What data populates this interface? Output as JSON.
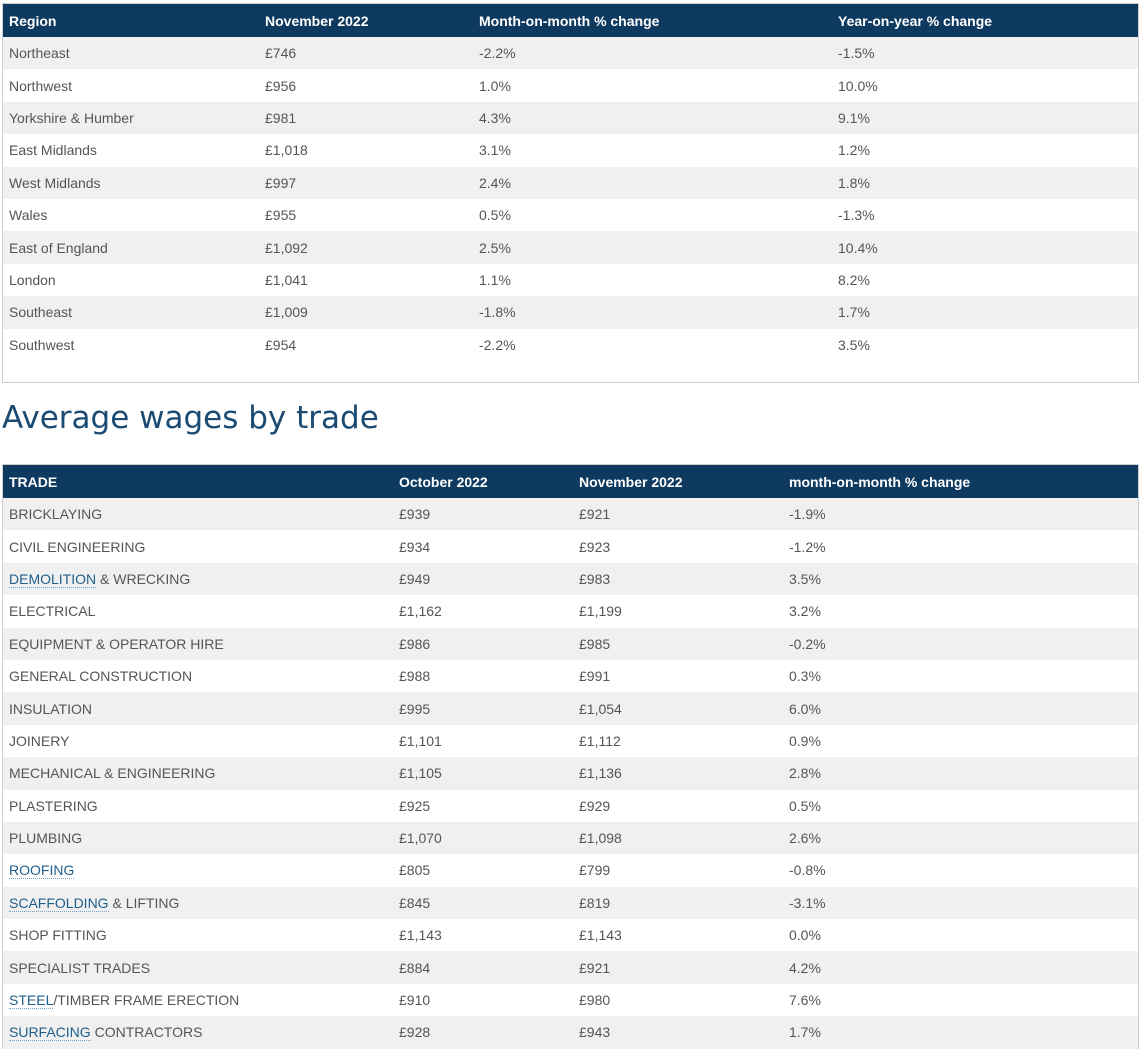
{
  "region_table": {
    "headers": [
      "Region",
      "November 2022",
      "Month-on-month % change",
      "Year-on-year % change"
    ],
    "rows": [
      [
        "Northeast",
        "£746",
        "-2.2%",
        "-1.5%"
      ],
      [
        "Northwest",
        "£956",
        "1.0%",
        "10.0%"
      ],
      [
        "Yorkshire & Humber",
        "£981",
        "4.3%",
        "9.1%"
      ],
      [
        "East Midlands",
        "£1,018",
        "3.1%",
        "1.2%"
      ],
      [
        "West Midlands",
        "£997",
        "2.4%",
        "1.8%"
      ],
      [
        "Wales",
        "£955",
        "0.5%",
        "-1.3%"
      ],
      [
        "East of England",
        "£1,092",
        "2.5%",
        "10.4%"
      ],
      [
        "London",
        "£1,041",
        "1.1%",
        "8.2%"
      ],
      [
        "Southeast",
        "£1,009",
        "-1.8%",
        "1.7%"
      ],
      [
        "Southwest",
        "£954",
        "-2.2%",
        "3.5%"
      ]
    ]
  },
  "trade_section": {
    "heading": "Average wages by trade"
  },
  "trade_table": {
    "headers": [
      "TRADE",
      "October 2022",
      "November 2022",
      "month-on-month % change"
    ],
    "rows": [
      {
        "trade_link": "",
        "trade_rest": "Bricklaying",
        "oct": "£939",
        "nov": "£921",
        "change": "-1.9%"
      },
      {
        "trade_link": "",
        "trade_rest": "Civil Engineering",
        "oct": "£934",
        "nov": "£923",
        "change": "-1.2%"
      },
      {
        "trade_link": "Demolition",
        "trade_rest": " & Wrecking",
        "oct": "£949",
        "nov": "£983",
        "change": "3.5%"
      },
      {
        "trade_link": "",
        "trade_rest": "Electrical",
        "oct": "£1,162",
        "nov": "£1,199",
        "change": "3.2%"
      },
      {
        "trade_link": "",
        "trade_rest": "Equipment & Operator Hire",
        "oct": "£986",
        "nov": "£985",
        "change": "-0.2%"
      },
      {
        "trade_link": "",
        "trade_rest": "General Construction",
        "oct": "£988",
        "nov": "£991",
        "change": "0.3%"
      },
      {
        "trade_link": "",
        "trade_rest": "Insulation",
        "oct": "£995",
        "nov": "£1,054",
        "change": "6.0%"
      },
      {
        "trade_link": "",
        "trade_rest": "Joinery",
        "oct": "£1,101",
        "nov": "£1,112",
        "change": "0.9%"
      },
      {
        "trade_link": "",
        "trade_rest": "Mechanical & Engineering",
        "oct": "£1,105",
        "nov": "£1,136",
        "change": "2.8%"
      },
      {
        "trade_link": "",
        "trade_rest": "Plastering",
        "oct": "£925",
        "nov": "£929",
        "change": "0.5%"
      },
      {
        "trade_link": "",
        "trade_rest": "Plumbing",
        "oct": "£1,070",
        "nov": "£1,098",
        "change": "2.6%"
      },
      {
        "trade_link": "Roofing",
        "trade_rest": "",
        "oct": "£805",
        "nov": "£799",
        "change": "-0.8%"
      },
      {
        "trade_link": "Scaffolding",
        "trade_rest": " & Lifting",
        "oct": "£845",
        "nov": "£819",
        "change": "-3.1%"
      },
      {
        "trade_link": "",
        "trade_rest": "Shop Fitting",
        "oct": "£1,143",
        "nov": "£1,143",
        "change": "0.0%"
      },
      {
        "trade_link": "",
        "trade_rest": "Specialist Trades",
        "oct": "£884",
        "nov": "£921",
        "change": "4.2%"
      },
      {
        "trade_link": "Steel",
        "trade_rest": "/Timber Frame Erection",
        "oct": "£910",
        "nov": "£980",
        "change": "7.6%"
      },
      {
        "trade_link": "Surfacing",
        "trade_rest": " Contractors",
        "oct": "£928",
        "nov": "£943",
        "change": "1.7%"
      }
    ]
  }
}
